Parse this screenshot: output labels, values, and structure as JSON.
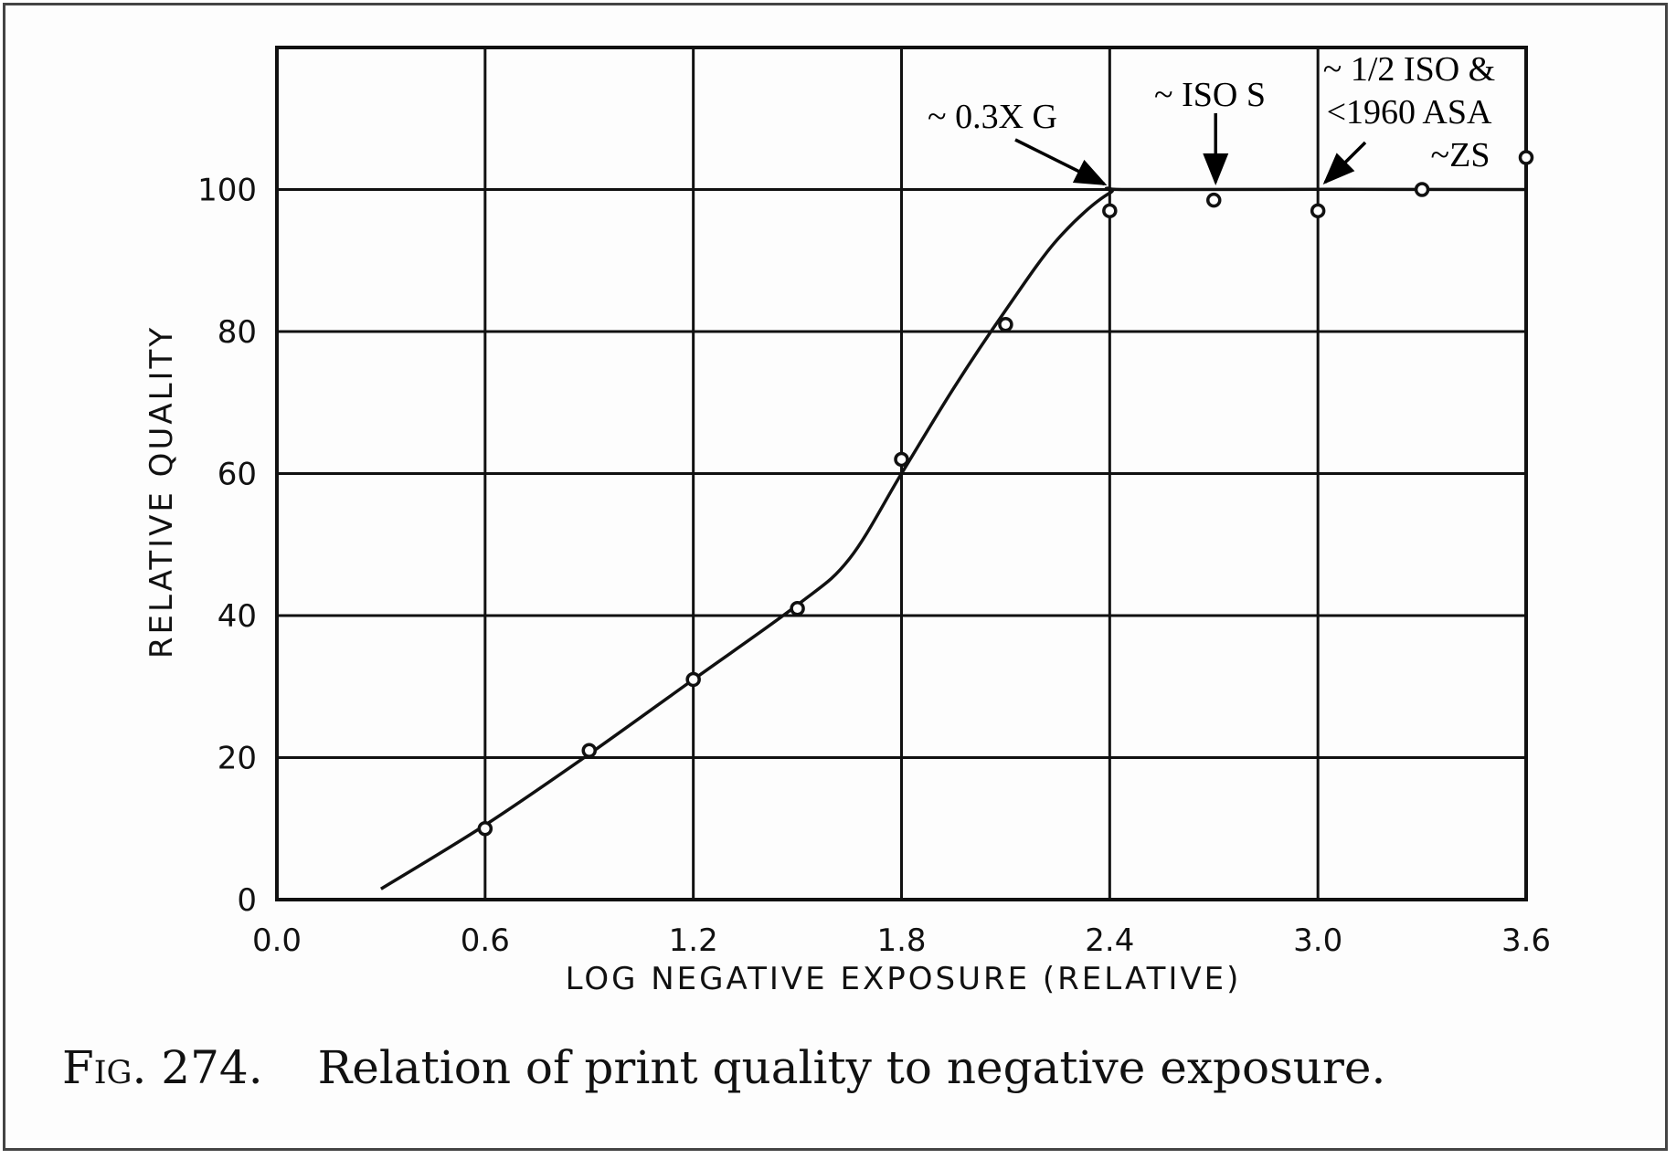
{
  "chart_data": {
    "type": "line",
    "xlabel": "LOG NEGATIVE EXPOSURE (RELATIVE)",
    "ylabel": "RELATIVE QUALITY",
    "xlim": [
      0.0,
      3.6
    ],
    "ylim": [
      0,
      120
    ],
    "x_ticks": [
      "0.0",
      "0.6",
      "1.2",
      "1.8",
      "2.4",
      "3.0",
      "3.6"
    ],
    "y_ticks": [
      "0",
      "20",
      "40",
      "60",
      "80",
      "100"
    ],
    "grid": true,
    "series": [
      {
        "type": "scatter",
        "points": [
          {
            "x": 0.6,
            "y": 10
          },
          {
            "x": 0.9,
            "y": 21
          },
          {
            "x": 1.2,
            "y": 31
          },
          {
            "x": 1.5,
            "y": 41
          },
          {
            "x": 1.8,
            "y": 62
          },
          {
            "x": 2.1,
            "y": 81
          },
          {
            "x": 2.4,
            "y": 97
          },
          {
            "x": 2.7,
            "y": 98.5
          },
          {
            "x": 3.0,
            "y": 97
          },
          {
            "x": 3.3,
            "y": 100
          },
          {
            "x": 3.6,
            "y": 104.5
          }
        ]
      },
      {
        "type": "line",
        "points": [
          {
            "x": 0.3,
            "y": 1.5
          },
          {
            "x": 0.6,
            "y": 10.5
          },
          {
            "x": 0.9,
            "y": 20.5
          },
          {
            "x": 1.2,
            "y": 31
          },
          {
            "x": 1.5,
            "y": 41.5
          },
          {
            "x": 1.65,
            "y": 48
          },
          {
            "x": 1.8,
            "y": 60
          },
          {
            "x": 1.95,
            "y": 72
          },
          {
            "x": 2.1,
            "y": 83
          },
          {
            "x": 2.25,
            "y": 93
          },
          {
            "x": 2.4,
            "y": 99.5
          },
          {
            "x": 2.5,
            "y": 100
          },
          {
            "x": 3.6,
            "y": 100
          }
        ]
      }
    ],
    "annotations": [
      {
        "lines": [
          "~ 0.3X G"
        ],
        "point_x": 2.4,
        "point_y": 100
      },
      {
        "lines": [
          "~ ISO S"
        ],
        "point_x": 2.7,
        "point_y": 100
      },
      {
        "lines": [
          "~ 1/2 ISO &",
          "<1960 ASA",
          "~ZS"
        ],
        "point_x": 3.0,
        "point_y": 100
      }
    ]
  },
  "caption": {
    "fig_label": "Fig. 274.",
    "text": "Relation of print quality to negative exposure."
  },
  "colors": {
    "ink": "#111111",
    "background": "#fdfdfd",
    "frame": "#444444"
  }
}
